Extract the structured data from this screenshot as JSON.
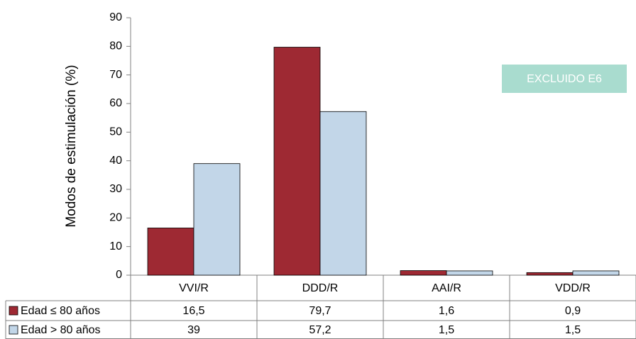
{
  "chart_data": {
    "type": "bar",
    "y_label": "Modos de estimulación (%)",
    "annotation": "EXCLUIDO E6",
    "categories": [
      "VVI/R",
      "DDD/R",
      "AAI/R",
      "VDD/R"
    ],
    "series": [
      {
        "name": "Edad ≤ 80 años",
        "color": "#9e2933",
        "values": [
          16.5,
          79.7,
          1.6,
          0.9
        ],
        "value_labels": [
          "16,5",
          "79,7",
          "1,6",
          "0,9"
        ]
      },
      {
        "name": "Edad > 80 años",
        "color": "#c2d6e8",
        "values": [
          39,
          57.2,
          1.5,
          1.5
        ],
        "value_labels": [
          "39",
          "57,2",
          "1,5",
          "1,5"
        ]
      }
    ],
    "ylim": [
      0,
      90
    ],
    "yticks": [
      0,
      10,
      20,
      30,
      40,
      50,
      60,
      70,
      80,
      90
    ]
  }
}
